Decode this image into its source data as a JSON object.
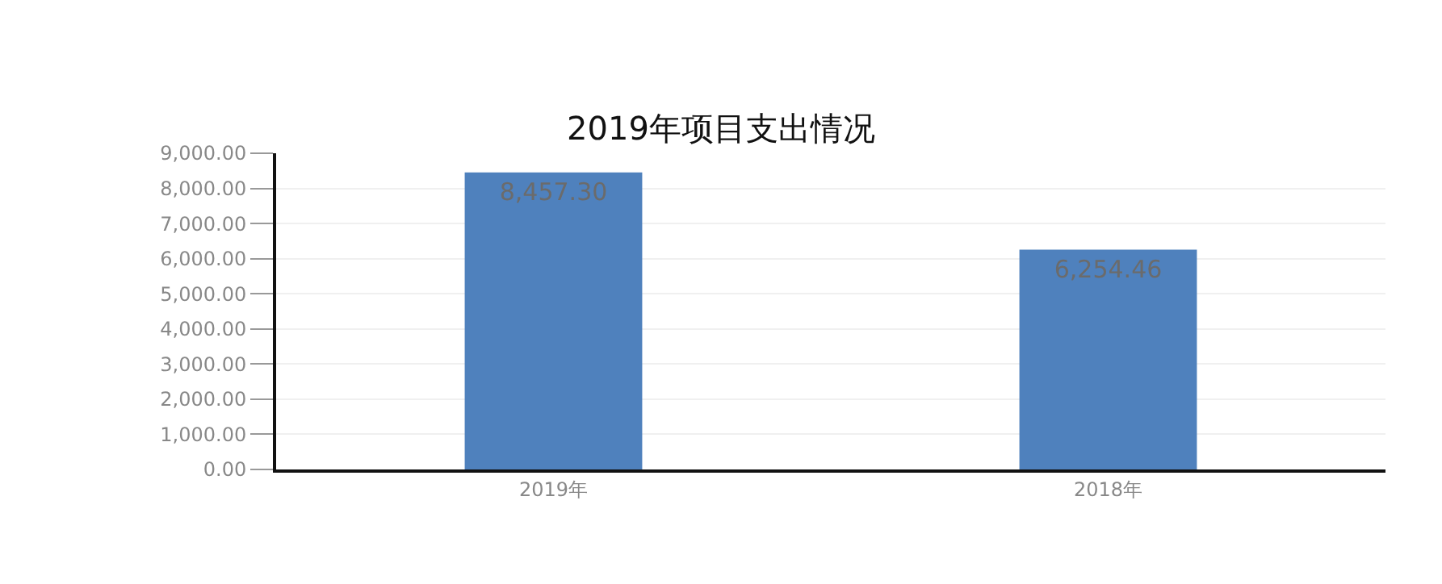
{
  "chart_data": {
    "type": "bar",
    "title": "2019年项目支出情况",
    "categories": [
      "2019年",
      "2018年"
    ],
    "values": [
      8457.3,
      6254.46
    ],
    "color": "#4f81bd",
    "value_labels": [
      "8,457.30",
      "6,254.46"
    ],
    "ylim": [
      0,
      9000
    ],
    "yticks": [
      {
        "value": 0,
        "label": "0.00"
      },
      {
        "value": 1000,
        "label": "1,000.00"
      },
      {
        "value": 2000,
        "label": "2,000.00"
      },
      {
        "value": 3000,
        "label": "3,000.00"
      },
      {
        "value": 4000,
        "label": "4,000.00"
      },
      {
        "value": 5000,
        "label": "5,000.00"
      },
      {
        "value": 6000,
        "label": "6,000.00"
      },
      {
        "value": 7000,
        "label": "7,000.00"
      },
      {
        "value": 8000,
        "label": "8,000.00"
      },
      {
        "value": 9000,
        "label": "9,000.00"
      }
    ],
    "grid": "y",
    "legend": false
  }
}
